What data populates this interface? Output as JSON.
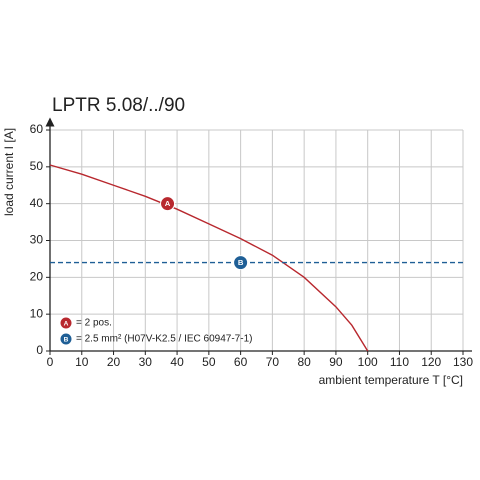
{
  "chart_data": {
    "type": "line",
    "title": "LPTR 5.08/../90",
    "x_label": "ambient temperature T [°C]",
    "y_label": "load current I [A]",
    "xlim": [
      0,
      130
    ],
    "ylim": [
      0,
      60
    ],
    "xticks": [
      0,
      10,
      20,
      30,
      40,
      50,
      60,
      70,
      80,
      90,
      100,
      110,
      120,
      130
    ],
    "yticks": [
      0,
      10,
      20,
      30,
      40,
      50,
      60
    ],
    "grid": true,
    "series": [
      {
        "name": "= 2 pos.",
        "badge": "A",
        "color": "#b8282e",
        "dashed": false,
        "x": [
          0,
          10,
          20,
          30,
          40,
          50,
          60,
          70,
          80,
          90,
          95,
          100
        ],
        "values": [
          50.5,
          48,
          45,
          42,
          38.5,
          34.5,
          30.5,
          26,
          20,
          12,
          7,
          0
        ],
        "marker": {
          "x": 37,
          "y": 40
        }
      },
      {
        "name": "= 2.5 mm² (H07V-K2.5 / IEC 60947-7-1)",
        "badge": "B",
        "color": "#1f5f96",
        "dashed": true,
        "x": [
          0,
          130
        ],
        "values": [
          24,
          24
        ],
        "marker": {
          "x": 60,
          "y": 24
        }
      }
    ]
  }
}
